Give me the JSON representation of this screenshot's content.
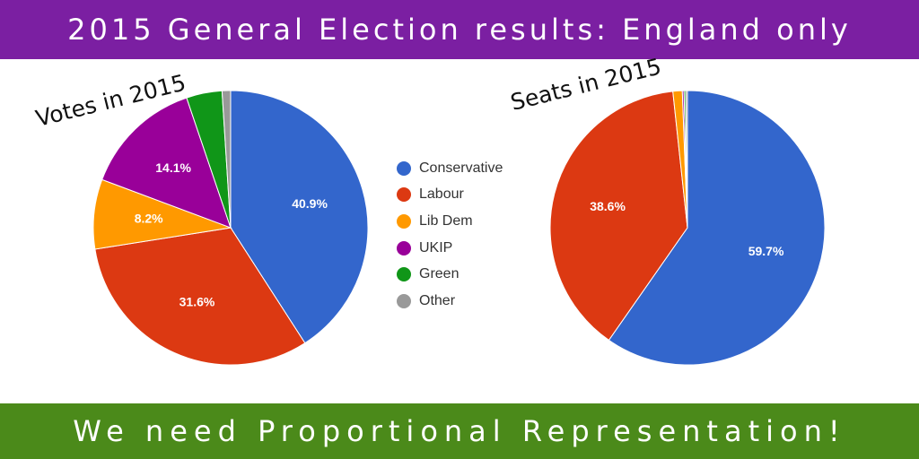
{
  "header": {
    "title": "2015 General Election results: England only",
    "color": "#7b1fa2"
  },
  "footer": {
    "text": "We need Proportional Representation!",
    "color": "#4b8a1a"
  },
  "legend": [
    {
      "label": "Conservative",
      "color": "#3366cc"
    },
    {
      "label": "Labour",
      "color": "#dc3912"
    },
    {
      "label": "Lib Dem",
      "color": "#ff9900"
    },
    {
      "label": "UKIP",
      "color": "#990099"
    },
    {
      "label": "Green",
      "color": "#109618"
    },
    {
      "label": "Other",
      "color": "#999999"
    }
  ],
  "chart_data": [
    {
      "type": "pie",
      "title": "Votes in 2015",
      "categories": [
        "Conservative",
        "Labour",
        "Lib Dem",
        "UKIP",
        "Green",
        "Other"
      ],
      "values": [
        40.9,
        31.6,
        8.2,
        14.1,
        4.2,
        1.0
      ],
      "data_labels": [
        "40.9%",
        "31.6%",
        "8.2%",
        "14.1%",
        "",
        ""
      ],
      "legend_position": "center"
    },
    {
      "type": "pie",
      "title": "Seats in 2015",
      "categories": [
        "Conservative",
        "Labour",
        "Lib Dem",
        "UKIP",
        "Green",
        "Other"
      ],
      "values": [
        59.7,
        38.6,
        1.1,
        0.2,
        0.2,
        0.2
      ],
      "data_labels": [
        "59.7%",
        "38.6%",
        "",
        "",
        "",
        ""
      ],
      "legend_position": "center"
    }
  ]
}
